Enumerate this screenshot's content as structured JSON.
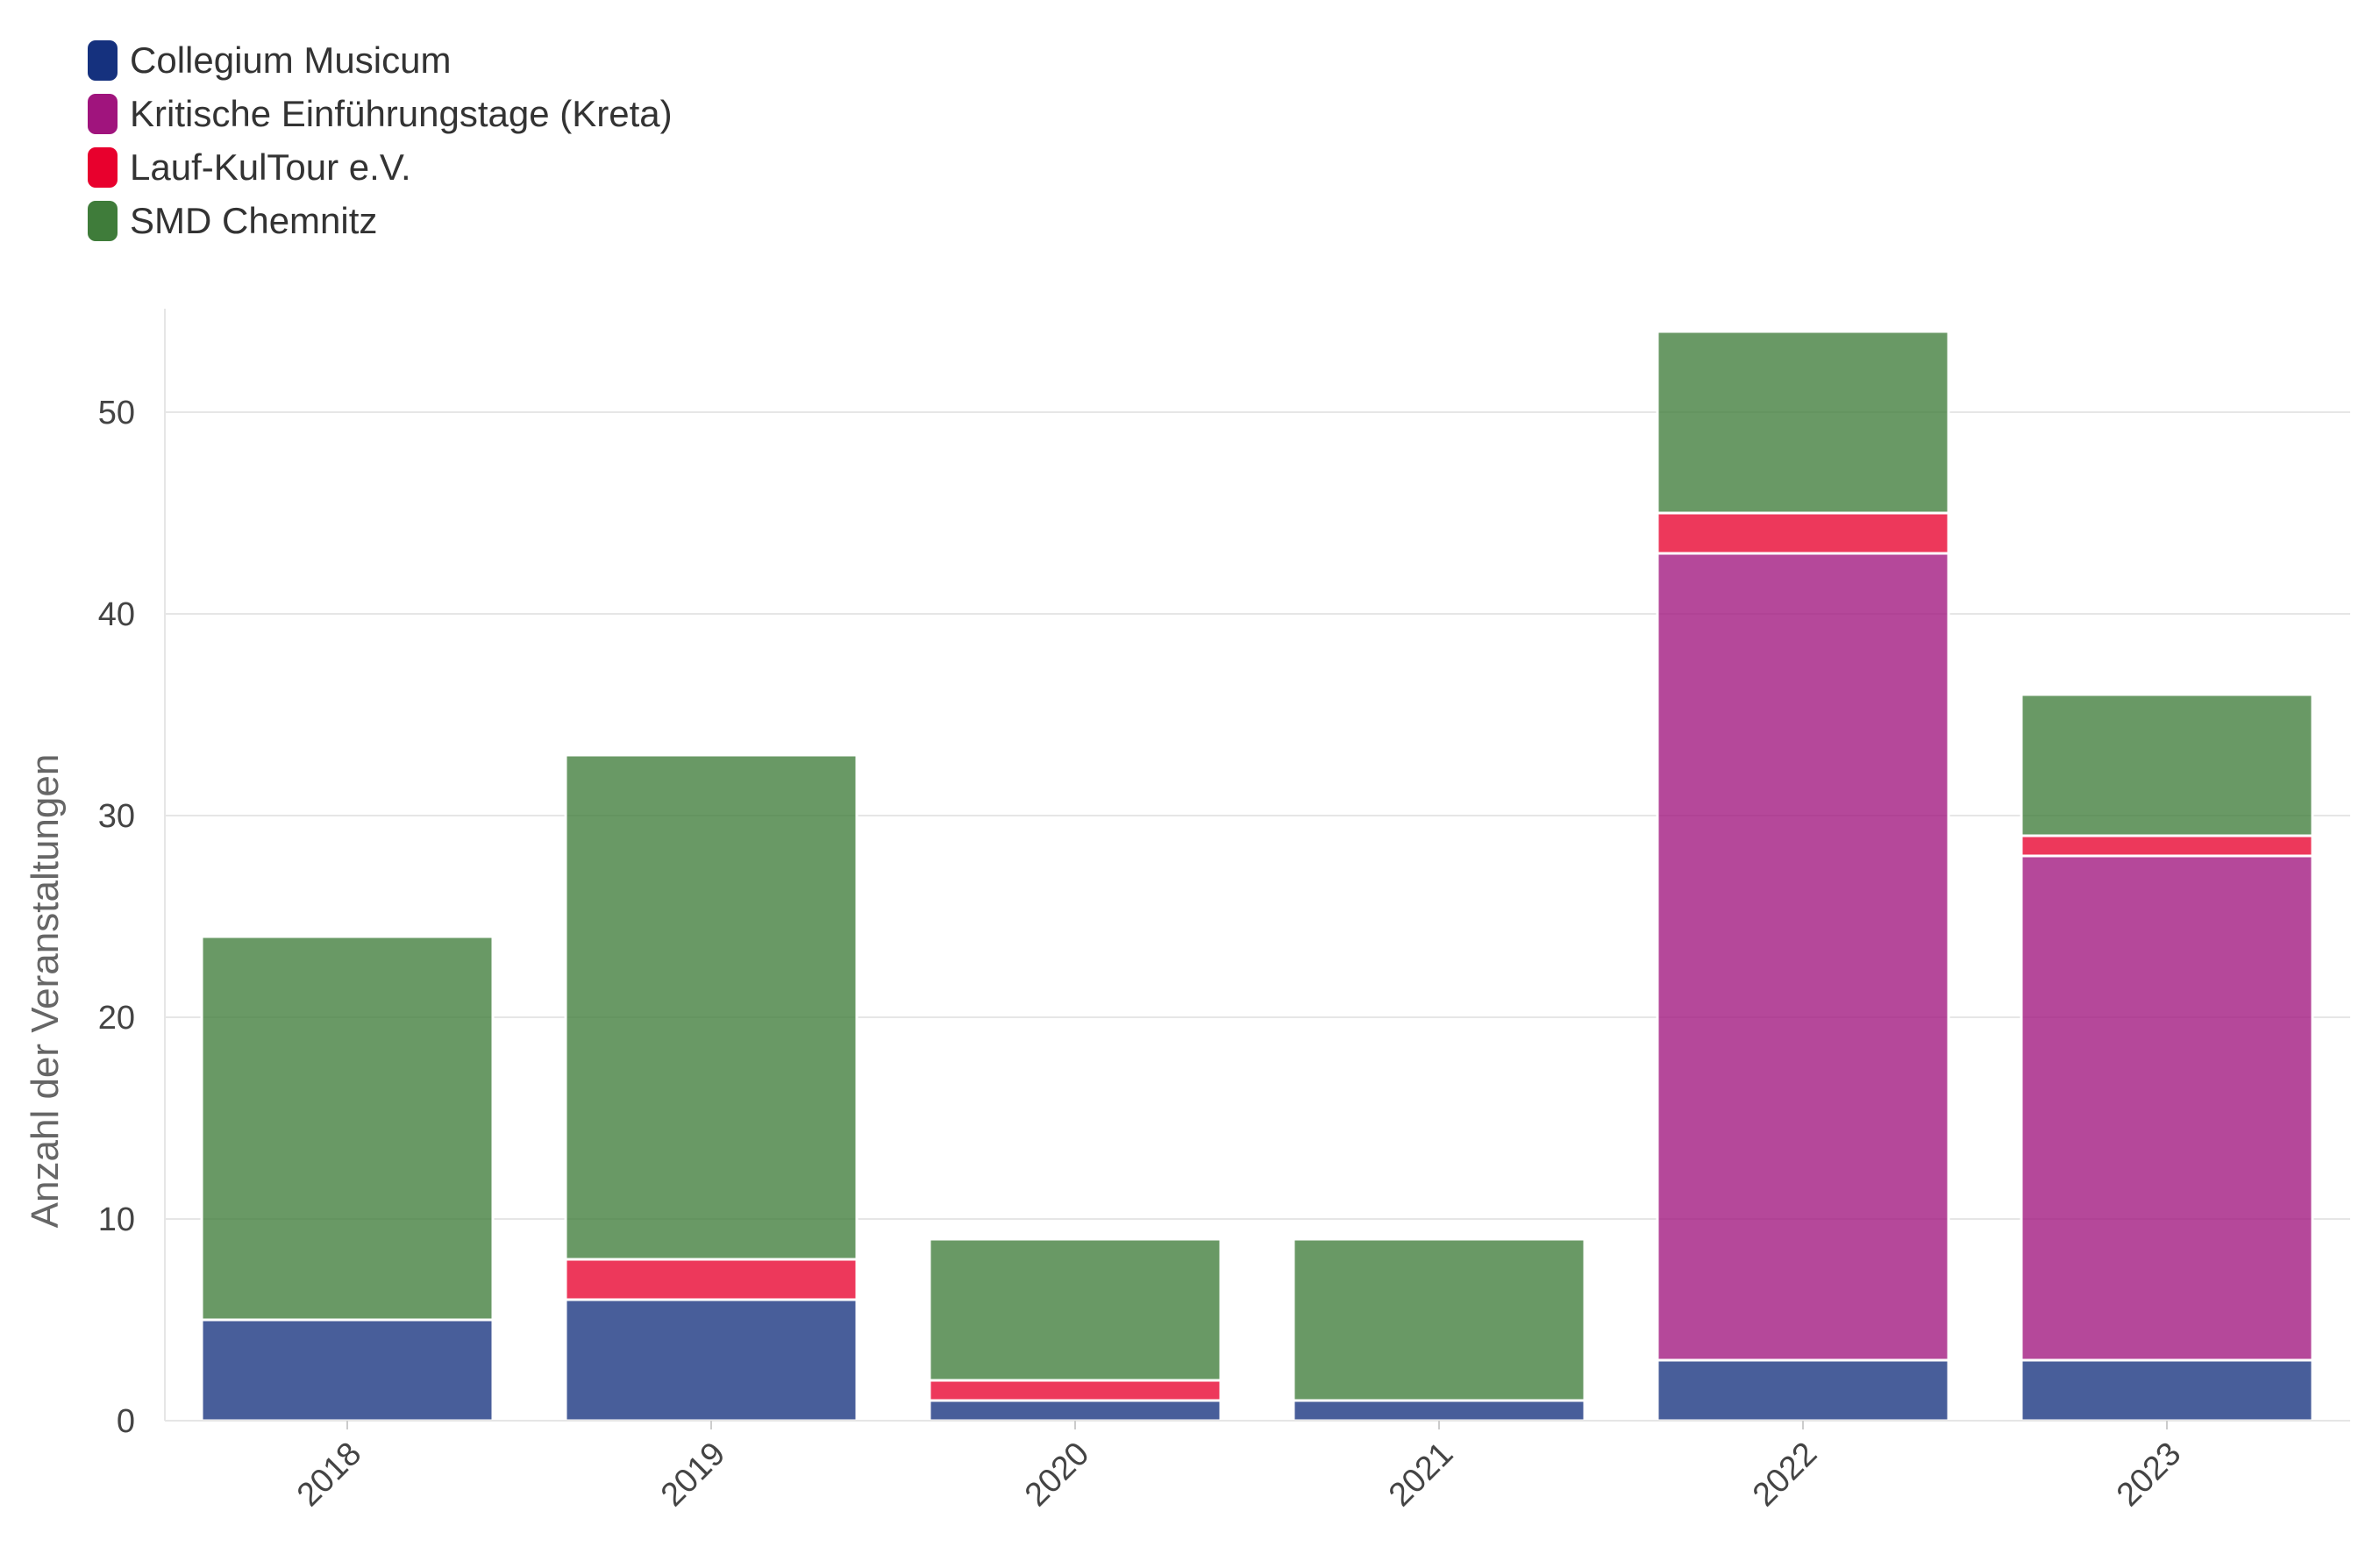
{
  "chart_data": {
    "type": "bar",
    "stacked": true,
    "categories": [
      "2018",
      "2019",
      "2020",
      "2021",
      "2022",
      "2023"
    ],
    "series": [
      {
        "name": "Collegium Musicum",
        "color": "#15317e",
        "values": [
          5,
          6,
          1,
          1,
          3,
          3
        ]
      },
      {
        "name": "Kritische Einführungstage (Kreta)",
        "color": "#a0147d",
        "values": [
          0,
          0,
          0,
          0,
          40,
          25
        ]
      },
      {
        "name": "Lauf-KulTour e.V.",
        "color": "#e8002d",
        "values": [
          0,
          2,
          1,
          0,
          2,
          1
        ]
      },
      {
        "name": "SMD Chemnitz",
        "color": "#3f7c3a",
        "values": [
          19,
          25,
          7,
          8,
          9,
          7
        ]
      }
    ],
    "title": "",
    "xlabel": "",
    "ylabel": "Anzahl der Veranstaltungen",
    "ylim": [
      0,
      55
    ],
    "yticks": [
      0,
      10,
      20,
      30,
      40,
      50
    ],
    "grid": true,
    "legend_position": "top-left"
  }
}
